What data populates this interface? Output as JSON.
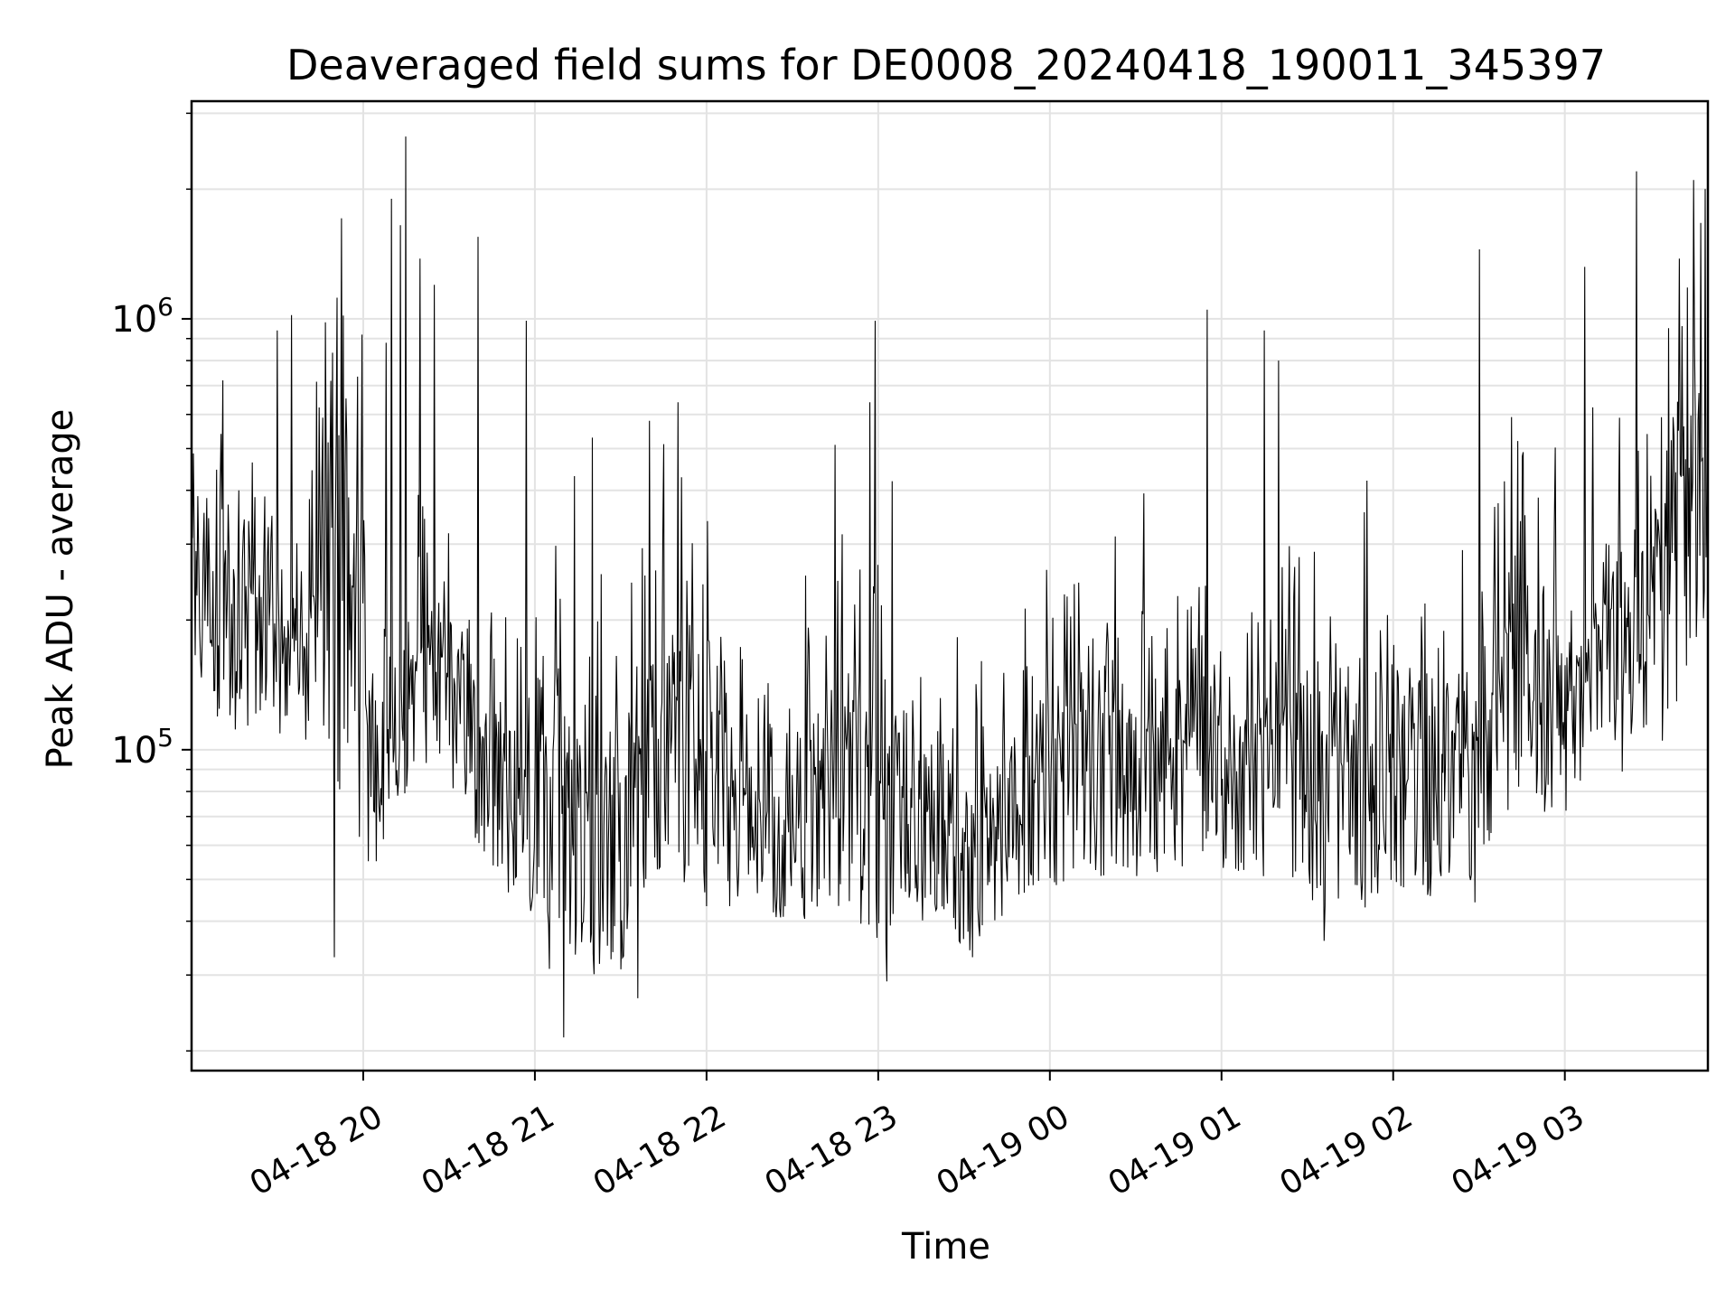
{
  "chart_data": {
    "type": "line",
    "title": "Deaveraged field sums for DE0008_20240418_190011_345397",
    "xlabel": "Time",
    "ylabel": "Peak ADU - average",
    "yscale": "log",
    "grid": true,
    "x_range": [
      "2024-04-18 19:00",
      "2024-04-19 03:50"
    ],
    "ylim": [
      18000,
      3200000
    ],
    "x_ticks": [
      {
        "x": "2024-04-18 20:00",
        "label": "04-18 20"
      },
      {
        "x": "2024-04-18 21:00",
        "label": "04-18 21"
      },
      {
        "x": "2024-04-18 22:00",
        "label": "04-18 22"
      },
      {
        "x": "2024-04-18 23:00",
        "label": "04-18 23"
      },
      {
        "x": "2024-04-19 00:00",
        "label": "04-19 00"
      },
      {
        "x": "2024-04-19 01:00",
        "label": "04-19 01"
      },
      {
        "x": "2024-04-19 02:00",
        "label": "04-19 02"
      },
      {
        "x": "2024-04-19 03:00",
        "label": "04-19 03"
      }
    ],
    "y_ticks": [
      {
        "value": 100000,
        "base": "10",
        "exp": "5"
      },
      {
        "value": 1000000,
        "base": "10",
        "exp": "6"
      }
    ],
    "series": [
      {
        "color": "#000000",
        "x": [
          "2024-04-18 19:00",
          "2024-04-18 19:10",
          "2024-04-18 19:20",
          "2024-04-18 19:30",
          "2024-04-18 19:40",
          "2024-04-18 19:50",
          "2024-04-18 20:00",
          "2024-04-18 20:10",
          "2024-04-18 20:20",
          "2024-04-18 20:30",
          "2024-04-18 20:40",
          "2024-04-18 20:50",
          "2024-04-18 21:00",
          "2024-04-18 21:10",
          "2024-04-18 21:20",
          "2024-04-18 21:30",
          "2024-04-18 21:40",
          "2024-04-18 21:50",
          "2024-04-18 22:00",
          "2024-04-18 22:10",
          "2024-04-18 22:20",
          "2024-04-18 22:30",
          "2024-04-18 22:40",
          "2024-04-18 22:50",
          "2024-04-18 23:00",
          "2024-04-18 23:10",
          "2024-04-18 23:20",
          "2024-04-18 23:30",
          "2024-04-18 23:40",
          "2024-04-18 23:50",
          "2024-04-19 00:00",
          "2024-04-19 00:10",
          "2024-04-19 00:20",
          "2024-04-19 00:30",
          "2024-04-19 00:40",
          "2024-04-19 00:50",
          "2024-04-19 01:00",
          "2024-04-19 01:10",
          "2024-04-19 01:20",
          "2024-04-19 01:30",
          "2024-04-19 01:40",
          "2024-04-19 01:50",
          "2024-04-19 02:00",
          "2024-04-19 02:10",
          "2024-04-19 02:20",
          "2024-04-19 02:30",
          "2024-04-19 02:40",
          "2024-04-19 02:50",
          "2024-04-19 03:00",
          "2024-04-19 03:10",
          "2024-04-19 03:20",
          "2024-04-19 03:30",
          "2024-04-19 03:40",
          "2024-04-19 03:50"
        ],
        "y_typical": [
          280000,
          250000,
          230000,
          190000,
          170000,
          500000,
          130000,
          110000,
          160000,
          150000,
          110000,
          90000,
          80000,
          95000,
          75000,
          80000,
          110000,
          130000,
          90000,
          80000,
          75000,
          75000,
          90000,
          100000,
          85000,
          70000,
          70000,
          65000,
          75000,
          90000,
          100000,
          115000,
          120000,
          110000,
          100000,
          105000,
          105000,
          100000,
          115000,
          125000,
          90000,
          95000,
          110000,
          100000,
          95000,
          100000,
          180000,
          160000,
          140000,
          190000,
          200000,
          220000,
          400000,
          700000
        ],
        "y_low": [
          150000,
          110000,
          110000,
          100000,
          100000,
          90000,
          45000,
          60000,
          80000,
          75000,
          60000,
          45000,
          40000,
          35000,
          30000,
          30000,
          50000,
          45000,
          42000,
          42000,
          40000,
          40000,
          40000,
          40000,
          35000,
          35000,
          38000,
          33000,
          38000,
          45000,
          48000,
          50000,
          50000,
          50000,
          50000,
          52000,
          52000,
          50000,
          50000,
          45000,
          40000,
          40000,
          48000,
          45000,
          40000,
          42000,
          65000,
          70000,
          70000,
          95000,
          100000,
          110000,
          130000,
          200000
        ],
        "spikes": [
          {
            "x": "2024-04-18 19:11",
            "y": 720000
          },
          {
            "x": "2024-04-18 19:30",
            "y": 940000
          },
          {
            "x": "2024-04-18 19:35",
            "y": 1020000
          },
          {
            "x": "2024-04-18 19:46",
            "y": 590000
          },
          {
            "x": "2024-04-18 19:50",
            "y": 33000
          },
          {
            "x": "2024-04-18 20:08",
            "y": 880000
          },
          {
            "x": "2024-04-18 20:10",
            "y": 1900000
          },
          {
            "x": "2024-04-18 20:13",
            "y": 1650000
          },
          {
            "x": "2024-04-18 20:15",
            "y": 2650000
          },
          {
            "x": "2024-04-18 20:20",
            "y": 1380000
          },
          {
            "x": "2024-04-18 20:25",
            "y": 1200000
          },
          {
            "x": "2024-04-18 20:40",
            "y": 1550000
          },
          {
            "x": "2024-04-18 20:57",
            "y": 990000
          },
          {
            "x": "2024-04-18 21:05",
            "y": 31000
          },
          {
            "x": "2024-04-18 21:10",
            "y": 21500
          },
          {
            "x": "2024-04-18 21:20",
            "y": 530000
          },
          {
            "x": "2024-04-18 21:36",
            "y": 26500
          },
          {
            "x": "2024-04-18 21:40",
            "y": 580000
          },
          {
            "x": "2024-04-18 21:50",
            "y": 640000
          },
          {
            "x": "2024-04-18 22:45",
            "y": 510000
          },
          {
            "x": "2024-04-18 22:57",
            "y": 640000
          },
          {
            "x": "2024-04-18 22:59",
            "y": 990000
          },
          {
            "x": "2024-04-18 23:03",
            "y": 29000
          },
          {
            "x": "2024-04-18 23:05",
            "y": 420000
          },
          {
            "x": "2024-04-18 23:33",
            "y": 33000
          },
          {
            "x": "2024-04-19 00:55",
            "y": 1050000
          },
          {
            "x": "2024-04-19 01:15",
            "y": 940000
          },
          {
            "x": "2024-04-19 01:20",
            "y": 800000
          },
          {
            "x": "2024-04-19 01:36",
            "y": 36000
          },
          {
            "x": "2024-04-19 02:30",
            "y": 1450000
          },
          {
            "x": "2024-04-19 02:33",
            "y": 65000
          },
          {
            "x": "2024-04-19 03:07",
            "y": 1320000
          },
          {
            "x": "2024-04-19 03:20",
            "y": 89000
          },
          {
            "x": "2024-04-19 03:25",
            "y": 2200000
          },
          {
            "x": "2024-04-19 03:34",
            "y": 105000
          },
          {
            "x": "2024-04-19 03:40",
            "y": 1380000
          },
          {
            "x": "2024-04-19 03:45",
            "y": 2100000
          },
          {
            "x": "2024-04-19 03:49",
            "y": 2000000
          }
        ]
      }
    ]
  }
}
